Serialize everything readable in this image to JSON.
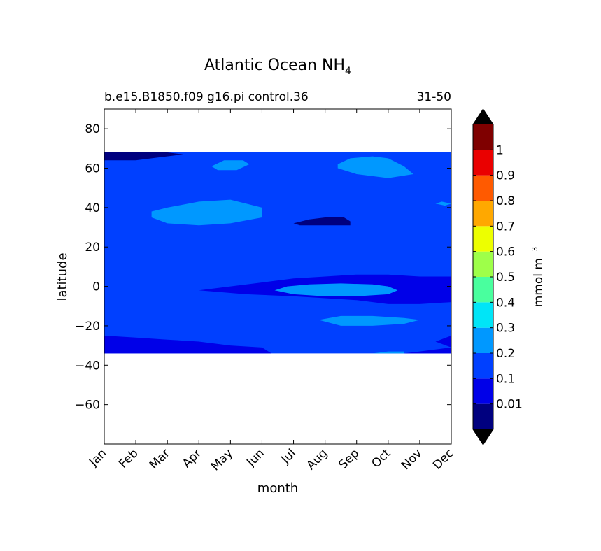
{
  "chart_data": {
    "type": "heatmap",
    "title": "Atlantic Ocean NH",
    "title_subscript": "4",
    "subtitle_left": "b.e15.B1850.f09 g16.pi control.36",
    "subtitle_right": "31-50",
    "xlabel": "month",
    "ylabel": "latitude",
    "x_ticks": [
      "Jan",
      "Feb",
      "Mar",
      "Apr",
      "May",
      "Jun",
      "Jul",
      "Aug",
      "Sep",
      "Oct",
      "Nov",
      "Dec"
    ],
    "ylim": [
      -80,
      90
    ],
    "y_ticks": [
      80,
      60,
      40,
      20,
      0,
      -20,
      -40,
      -60
    ],
    "y_tick_labels": [
      "80",
      "60",
      "40",
      "20",
      "0",
      "−20",
      "−40",
      "−60"
    ],
    "data_lat_range": [
      -34,
      68
    ],
    "colorbar": {
      "label": "mmol m",
      "label_superscript": "−3",
      "levels": [
        0,
        0.01,
        0.1,
        0.2,
        0.3,
        0.4,
        0.5,
        0.6,
        0.7,
        0.8,
        0.9,
        1.0,
        1.1
      ],
      "tick_values": [
        0.01,
        0.1,
        0.2,
        0.3,
        0.4,
        0.5,
        0.6,
        0.7,
        0.8,
        0.9,
        1.0
      ],
      "tick_labels": [
        "0.01",
        "0.1",
        "0.2",
        "0.3",
        "0.4",
        "0.5",
        "0.6",
        "0.7",
        "0.8",
        "0.9",
        "1"
      ],
      "colors": [
        "#00007f",
        "#0000e8",
        "#0040ff",
        "#0098ff",
        "#00e5f7",
        "#49ff9e",
        "#9eff49",
        "#edff00",
        "#ffa800",
        "#ff5a00",
        "#ea0000",
        "#7f0000"
      ],
      "extend_low_color": "#000000",
      "extend_high_color": "#000000"
    },
    "fields": {
      "background": 0.1,
      "regions": [
        {
          "level": 0.15,
          "desc": "north band",
          "path": [
            [
              0,
              68
            ],
            [
              12,
              68
            ],
            [
              12,
              55
            ],
            [
              11,
              52
            ],
            [
              10,
              50
            ],
            [
              9,
              48
            ],
            [
              8,
              45
            ],
            [
              7,
              40
            ],
            [
              6,
              38
            ],
            [
              5,
              40
            ],
            [
              4,
              45
            ],
            [
              3,
              47
            ],
            [
              2,
              48
            ],
            [
              1,
              48
            ],
            [
              0,
              48
            ]
          ]
        },
        {
          "level": 0.15,
          "desc": "mid band",
          "path": [
            [
              0,
              28
            ],
            [
              1,
              28
            ],
            [
              2,
              27
            ],
            [
              3,
              26
            ],
            [
              4,
              25
            ],
            [
              5,
              26
            ],
            [
              6,
              28
            ],
            [
              7,
              30
            ],
            [
              8,
              32
            ],
            [
              9,
              33
            ],
            [
              10,
              33
            ],
            [
              11,
              30
            ],
            [
              12,
              28
            ],
            [
              12,
              22
            ],
            [
              10,
              25
            ],
            [
              9,
              27
            ],
            [
              8,
              27
            ],
            [
              7,
              25
            ],
            [
              6,
              24
            ],
            [
              5,
              23
            ],
            [
              4,
              24
            ],
            [
              3,
              25
            ],
            [
              2,
              25
            ],
            [
              1,
              25
            ],
            [
              0,
              25
            ]
          ]
        },
        {
          "level": 0.15,
          "desc": "tropical band",
          "path": [
            [
              0,
              19
            ],
            [
              1,
              19.5
            ],
            [
              1.5,
              18
            ],
            [
              1.2,
              17
            ],
            [
              3,
              15
            ],
            [
              5,
              15
            ],
            [
              6.5,
              14
            ],
            [
              8,
              12
            ],
            [
              9,
              11
            ],
            [
              10,
              11
            ],
            [
              11,
              10
            ],
            [
              12,
              9
            ],
            [
              12,
              -34
            ],
            [
              9,
              -34
            ],
            [
              8,
              -32
            ],
            [
              7,
              -30
            ],
            [
              6,
              -27
            ],
            [
              5,
              -23
            ],
            [
              4,
              -21
            ],
            [
              3,
              -21
            ],
            [
              2,
              -20
            ],
            [
              1,
              -20
            ],
            [
              0,
              -19
            ]
          ]
        },
        {
          "level": 0.05,
          "desc": "equatorial low",
          "path": [
            [
              12,
              5
            ],
            [
              10,
              5
            ],
            [
              9,
              6
            ],
            [
              8,
              6
            ],
            [
              7,
              5
            ],
            [
              6,
              4
            ],
            [
              5,
              2
            ],
            [
              4,
              0
            ],
            [
              3,
              -2
            ],
            [
              4.5,
              -4
            ],
            [
              6,
              -5
            ],
            [
              7,
              -6
            ],
            [
              8,
              -7
            ],
            [
              9,
              -9
            ],
            [
              10,
              -9
            ],
            [
              11,
              -8
            ],
            [
              12,
              -8
            ]
          ]
        },
        {
          "level": 0.05,
          "desc": "south low west",
          "path": [
            [
              0,
              -34
            ],
            [
              0,
              -25
            ],
            [
              1,
              -26
            ],
            [
              2,
              -27
            ],
            [
              3,
              -28
            ],
            [
              4,
              -30
            ],
            [
              5,
              -31
            ],
            [
              5.3,
              -34
            ]
          ]
        },
        {
          "level": 0.05,
          "desc": "south low east",
          "path": [
            [
              12,
              -34
            ],
            [
              12,
              -27
            ],
            [
              11,
              -25
            ],
            [
              10.5,
              -28
            ],
            [
              11,
              -31
            ],
            [
              10,
              -33
            ],
            [
              9.5,
              -34
            ]
          ]
        },
        {
          "level": 0.25,
          "desc": "sw subtropical patch",
          "path": [
            [
              1.5,
              38
            ],
            [
              2,
              40
            ],
            [
              3,
              43
            ],
            [
              4,
              44
            ],
            [
              4.5,
              42
            ],
            [
              5,
              40
            ],
            [
              5,
              35
            ],
            [
              4,
              32
            ],
            [
              3,
              31
            ],
            [
              2,
              32
            ],
            [
              1.5,
              35
            ]
          ]
        },
        {
          "level": 0.25,
          "desc": "north patch Sep",
          "path": [
            [
              7.4,
              62
            ],
            [
              7.8,
              65
            ],
            [
              8.5,
              66
            ],
            [
              9,
              65
            ],
            [
              9.5,
              61
            ],
            [
              9.8,
              57
            ],
            [
              9,
              55
            ],
            [
              8,
              57
            ],
            [
              7.4,
              60
            ]
          ]
        },
        {
          "level": 0.25,
          "desc": "north patch May",
          "path": [
            [
              3.4,
              61
            ],
            [
              3.8,
              64
            ],
            [
              4.4,
              64
            ],
            [
              4.6,
              62
            ],
            [
              4.2,
              59
            ],
            [
              3.6,
              59
            ]
          ]
        },
        {
          "level": 0.25,
          "desc": "equatorial patch",
          "path": [
            [
              5.4,
              -2
            ],
            [
              5.8,
              0
            ],
            [
              6.5,
              1
            ],
            [
              7.5,
              1.5
            ],
            [
              8.5,
              1
            ],
            [
              9,
              0
            ],
            [
              9.3,
              -2
            ],
            [
              9,
              -4
            ],
            [
              8,
              -5
            ],
            [
              7,
              -5
            ],
            [
              6,
              -4
            ]
          ]
        },
        {
          "level": 0.25,
          "desc": "south tropical patch",
          "path": [
            [
              6.8,
              -17
            ],
            [
              7.5,
              -15
            ],
            [
              8.5,
              -15
            ],
            [
              9.5,
              -16
            ],
            [
              10,
              -17
            ],
            [
              9.5,
              -19
            ],
            [
              8.5,
              -20
            ],
            [
              7.5,
              -20
            ]
          ]
        },
        {
          "level": 0.25,
          "desc": "south edge patch",
          "path": [
            [
              8.5,
              -34
            ],
            [
              9,
              -33
            ],
            [
              9.5,
              -33
            ],
            [
              9.5,
              -34
            ]
          ]
        },
        {
          "level": 0.25,
          "desc": "north small patch",
          "path": [
            [
              10.5,
              42
            ],
            [
              10.7,
              43
            ],
            [
              11,
              42
            ],
            [
              10.8,
              41
            ]
          ]
        },
        {
          "level": 0.005,
          "desc": "deep low 35N",
          "path": [
            [
              6,
              32
            ],
            [
              6.5,
              34
            ],
            [
              7,
              35
            ],
            [
              7.6,
              35
            ],
            [
              7.8,
              33
            ],
            [
              7.8,
              31
            ],
            [
              7,
              31
            ],
            [
              6.2,
              31
            ]
          ]
        },
        {
          "level": 0.005,
          "desc": "deep low north edge",
          "path": [
            [
              0,
              68
            ],
            [
              2,
              68
            ],
            [
              2.5,
              67
            ],
            [
              1.5,
              65
            ],
            [
              1,
              64
            ],
            [
              0,
              64
            ]
          ]
        }
      ]
    }
  }
}
